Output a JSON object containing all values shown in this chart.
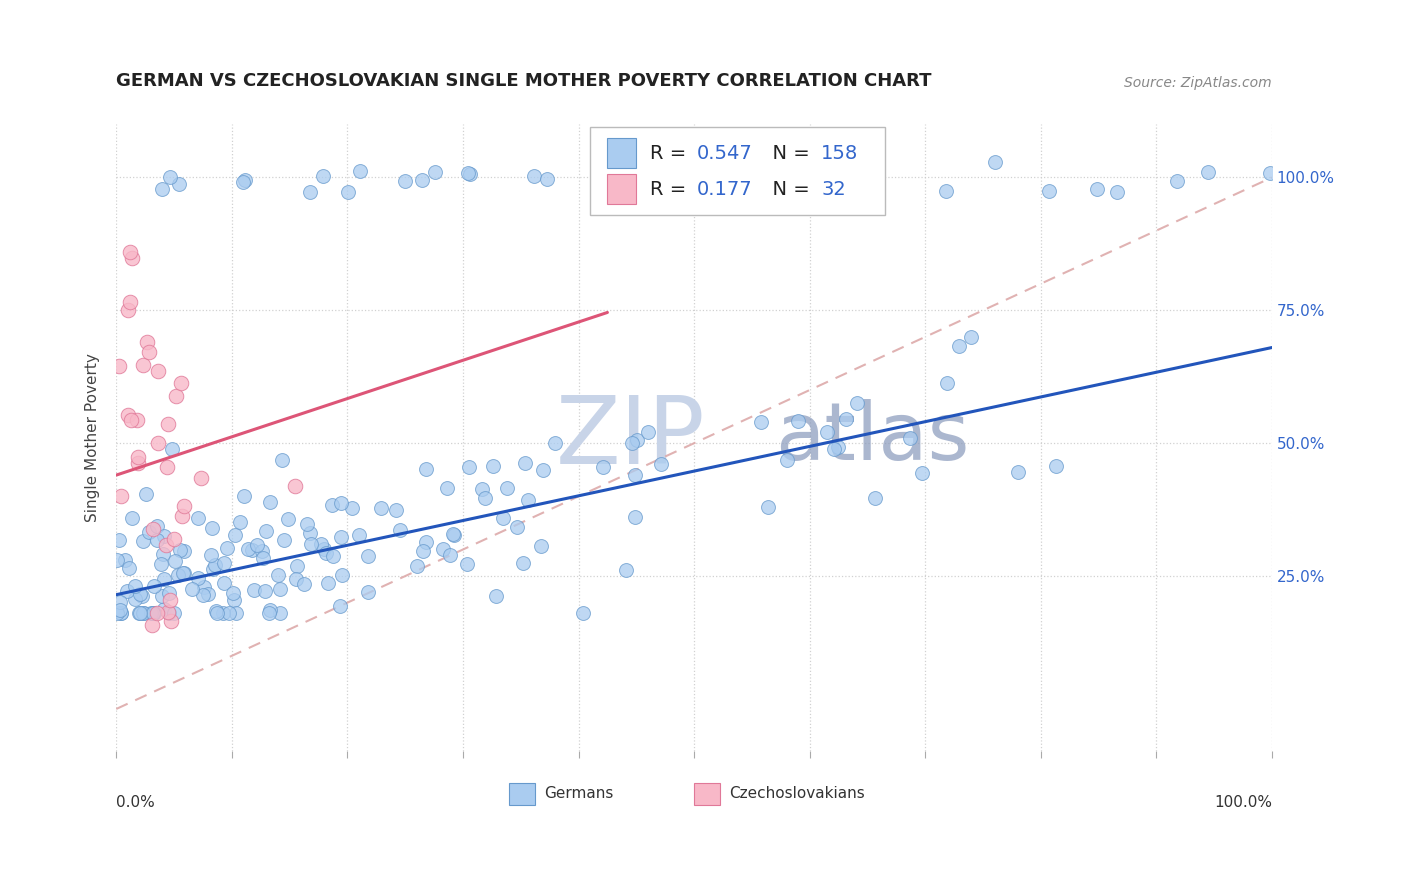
{
  "title": "GERMAN VS CZECHOSLOVAKIAN SINGLE MOTHER POVERTY CORRELATION CHART",
  "source": "Source: ZipAtlas.com",
  "ylabel": "Single Mother Poverty",
  "ytick_labels": [
    "25.0%",
    "50.0%",
    "75.0%",
    "100.0%"
  ],
  "ytick_values": [
    0.25,
    0.5,
    0.75,
    1.0
  ],
  "german_R": "0.547",
  "german_N": "158",
  "czech_R": "0.177",
  "czech_N": "32",
  "german_color": "#aaccf0",
  "german_edge_color": "#6699cc",
  "czech_color": "#f8b8c8",
  "czech_edge_color": "#e07898",
  "trend_german_color": "#2255bb",
  "trend_czech_color": "#dd5577",
  "trend_diag_color": "#ddaaaa",
  "watermark_main_color": "#c8d4e8",
  "watermark_sub_color": "#8899bb",
  "background_color": "#ffffff",
  "legend_color": "#3366cc",
  "title_fontsize": 13,
  "source_fontsize": 10,
  "axis_label_fontsize": 11,
  "legend_fontsize": 14,
  "xlim": [
    0.0,
    1.0
  ],
  "ylim": [
    -0.08,
    1.1
  ],
  "german_line_intercept": 0.215,
  "german_line_slope": 0.465,
  "czech_line_intercept": 0.44,
  "czech_line_slope": 0.72
}
